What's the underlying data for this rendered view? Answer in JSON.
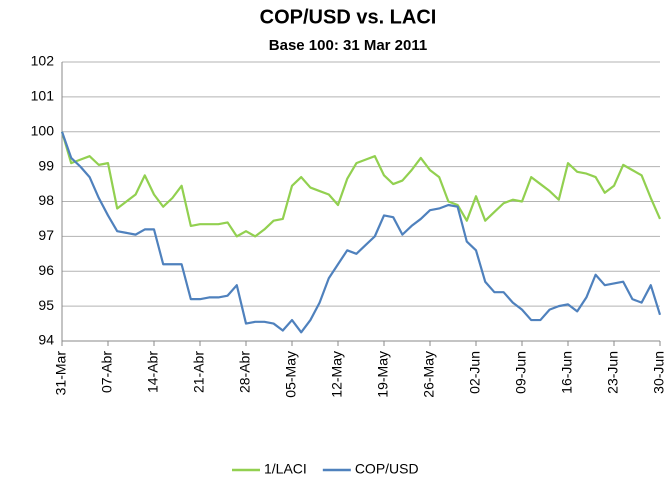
{
  "chart_data": {
    "type": "line",
    "title": "COP/USD vs. LACI",
    "subtitle": "Base 100: 31 Mar 2011",
    "categories": [
      "31-Mar",
      null,
      null,
      null,
      null,
      "07-Abr",
      null,
      null,
      null,
      null,
      "14-Abr",
      null,
      null,
      null,
      null,
      "21-Abr",
      null,
      null,
      null,
      null,
      "28-Abr",
      null,
      null,
      null,
      null,
      "05-May",
      null,
      null,
      null,
      null,
      "12-May",
      null,
      null,
      null,
      null,
      "19-May",
      null,
      null,
      null,
      null,
      "26-May",
      null,
      null,
      null,
      null,
      "02-Jun",
      null,
      null,
      null,
      null,
      "09-Jun",
      null,
      null,
      null,
      null,
      "16-Jun",
      null,
      null,
      null,
      null,
      "23-Jun",
      null,
      null,
      null,
      null,
      "30-Jun"
    ],
    "series": [
      {
        "name": "1/LACI",
        "color": "#92d050",
        "values": [
          100,
          99.1,
          99.2,
          99.3,
          99.05,
          99.1,
          97.8,
          98.0,
          98.2,
          98.75,
          98.2,
          97.85,
          98.1,
          98.45,
          97.3,
          97.35,
          97.35,
          97.35,
          97.4,
          97.0,
          97.15,
          97.0,
          97.2,
          97.45,
          97.5,
          98.45,
          98.7,
          98.4,
          98.3,
          98.2,
          97.9,
          98.65,
          99.1,
          99.2,
          99.3,
          98.75,
          98.5,
          98.6,
          98.9,
          99.25,
          98.9,
          98.7,
          98.0,
          97.9,
          97.45,
          98.15,
          97.45,
          97.7,
          97.95,
          98.05,
          98.0,
          98.7,
          98.5,
          98.3,
          98.05,
          99.1,
          98.85,
          98.8,
          98.7,
          98.25,
          98.45,
          99.05,
          98.9,
          98.75,
          98.1,
          97.5
        ]
      },
      {
        "name": "COP/USD",
        "color": "#4f81bd",
        "values": [
          100,
          99.25,
          99.0,
          98.7,
          98.1,
          97.6,
          97.15,
          97.1,
          97.05,
          97.2,
          97.2,
          96.2,
          96.2,
          96.2,
          95.2,
          95.2,
          95.25,
          95.25,
          95.3,
          95.6,
          94.5,
          94.55,
          94.55,
          94.5,
          94.3,
          94.6,
          94.25,
          94.6,
          95.1,
          95.8,
          96.2,
          96.6,
          96.5,
          96.75,
          97.0,
          97.6,
          97.55,
          97.05,
          97.3,
          97.5,
          97.75,
          97.8,
          97.9,
          97.85,
          96.85,
          96.6,
          95.7,
          95.4,
          95.4,
          95.1,
          94.9,
          94.6,
          94.6,
          94.9,
          95.0,
          95.05,
          94.85,
          95.25,
          95.9,
          95.6,
          95.65,
          95.7,
          95.2,
          95.1,
          95.6,
          94.75
        ]
      }
    ],
    "ylim": [
      94,
      102
    ],
    "yticks": [
      94,
      95,
      96,
      97,
      98,
      99,
      100,
      101,
      102
    ],
    "grid": true,
    "legend": "bottom"
  }
}
